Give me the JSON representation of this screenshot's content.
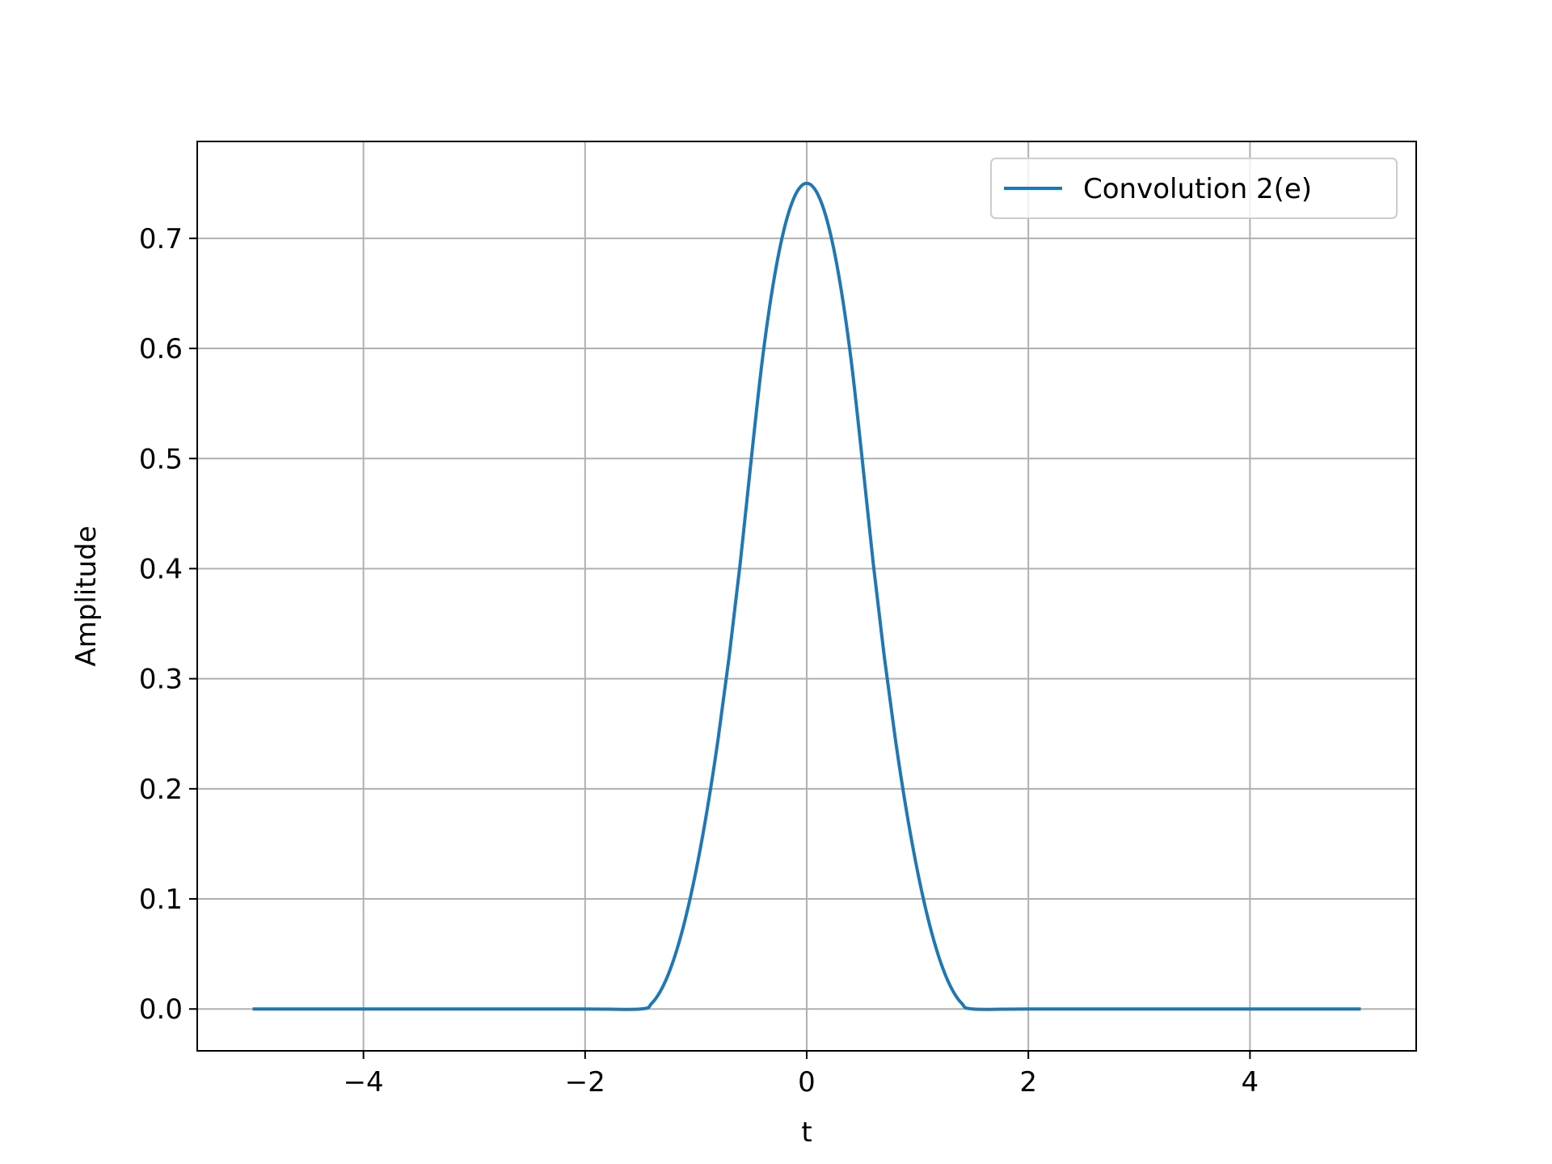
{
  "chart_data": {
    "type": "line",
    "title": "",
    "xlabel": "t",
    "ylabel": "Amplitude",
    "xlim": [
      -5.5,
      5.5
    ],
    "ylim": [
      -0.038,
      0.788
    ],
    "x_ticks": [
      -4,
      -2,
      0,
      2,
      4
    ],
    "x_tick_labels": [
      "−4",
      "−2",
      "0",
      "2",
      "4"
    ],
    "y_ticks": [
      0.0,
      0.1,
      0.2,
      0.3,
      0.4,
      0.5,
      0.6,
      0.7
    ],
    "y_tick_labels": [
      "0.0",
      "0.1",
      "0.2",
      "0.3",
      "0.4",
      "0.5",
      "0.6",
      "0.7"
    ],
    "grid": true,
    "legend_position": "top-right",
    "series": [
      {
        "name": "Convolution 2(e)",
        "color": "#1f77b4",
        "x": [
          -5,
          -4,
          -3,
          -2,
          -1.5,
          -1.4,
          -1.3,
          -1.2,
          -1.1,
          -1.0,
          -0.9,
          -0.8,
          -0.7,
          -0.6,
          -0.5,
          -0.4,
          -0.3,
          -0.2,
          -0.1,
          0.0,
          0.1,
          0.2,
          0.3,
          0.4,
          0.5,
          0.6,
          0.7,
          0.8,
          0.9,
          1.0,
          1.1,
          1.2,
          1.3,
          1.4,
          1.5,
          2,
          3,
          4,
          5
        ],
        "y": [
          0,
          0,
          0,
          0,
          0,
          0.005,
          0.02,
          0.045,
          0.08,
          0.125,
          0.18,
          0.245,
          0.32,
          0.405,
          0.5,
          0.59,
          0.66,
          0.71,
          0.74,
          0.75,
          0.74,
          0.71,
          0.66,
          0.59,
          0.5,
          0.405,
          0.32,
          0.245,
          0.18,
          0.125,
          0.08,
          0.045,
          0.02,
          0.005,
          0,
          0,
          0,
          0,
          0
        ]
      }
    ]
  }
}
